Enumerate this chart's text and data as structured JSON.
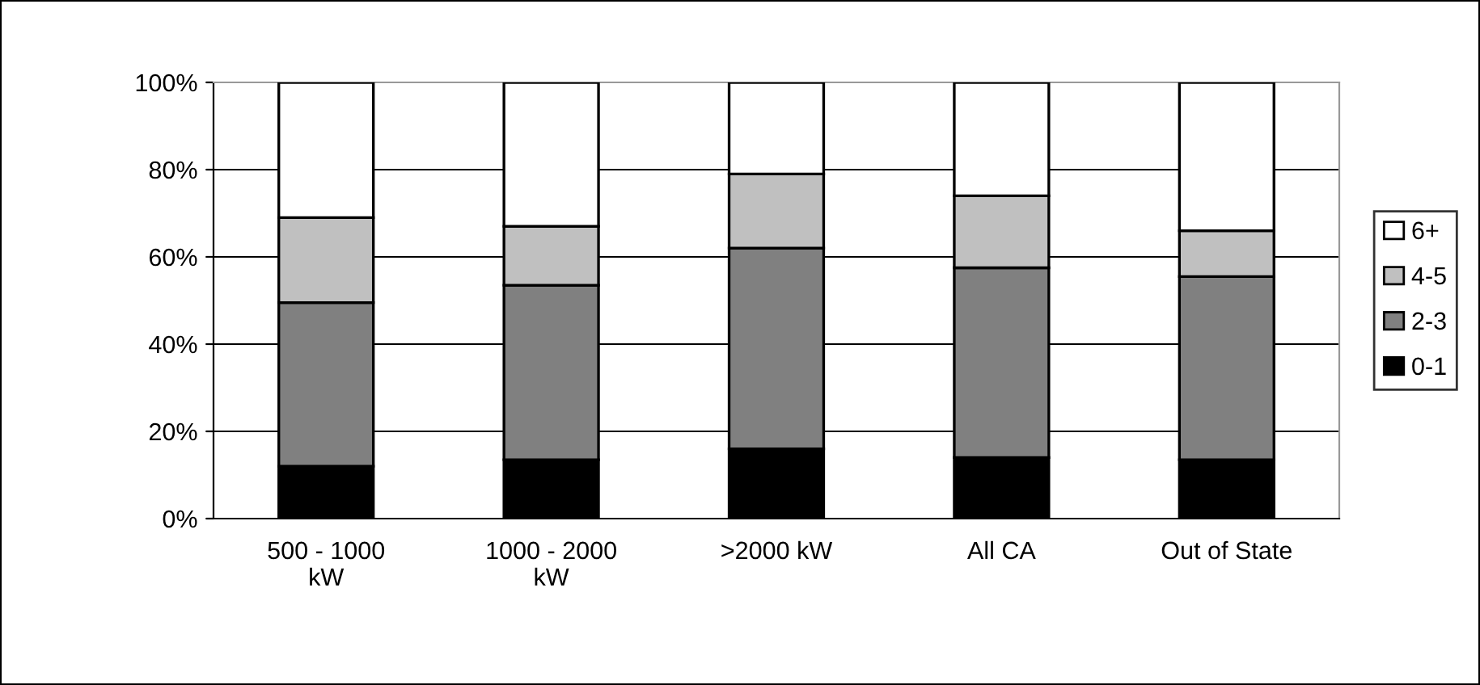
{
  "chart_data": {
    "type": "bar",
    "stacked": true,
    "categories": [
      "500 - 1000\nkW",
      "1000 - 2000\nkW",
      ">2000 kW",
      "All CA",
      "Out of State"
    ],
    "series": [
      {
        "name": "0-1",
        "color": "#000000",
        "values": [
          12,
          13.5,
          16,
          14,
          13.5
        ]
      },
      {
        "name": "2-3",
        "color": "#808080",
        "values": [
          37.5,
          40,
          46,
          43.5,
          42
        ]
      },
      {
        "name": "4-5",
        "color": "#c0c0c0",
        "values": [
          19.5,
          13.5,
          17,
          16.5,
          10.5
        ]
      },
      {
        "name": "6+",
        "color": "#ffffff",
        "values": [
          31,
          33,
          21,
          26,
          34
        ]
      }
    ],
    "ylim": [
      0,
      100
    ],
    "yticks": [
      {
        "value": 0,
        "label": "0%"
      },
      {
        "value": 20,
        "label": "20%"
      },
      {
        "value": 40,
        "label": "40%"
      },
      {
        "value": 60,
        "label": "60%"
      },
      {
        "value": 80,
        "label": "80%"
      },
      {
        "value": 100,
        "label": "100%"
      }
    ],
    "grid": "y",
    "legend": "right"
  }
}
